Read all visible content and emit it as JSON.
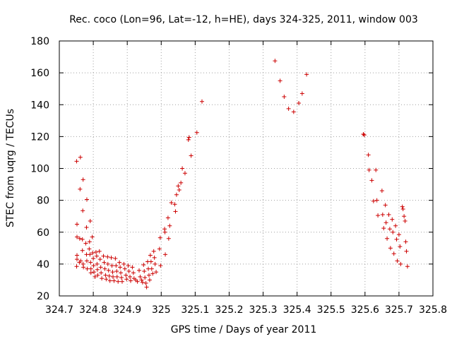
{
  "chart_data": {
    "type": "scatter",
    "title": "Rec. coco (Lon=96, Lat=-12, h=HE), days 324-325, 2011, window 003",
    "xlabel": "GPS time / Days of year 2011",
    "ylabel": "STEC from uqrg / TECUs",
    "xlim": [
      324.7,
      325.8
    ],
    "ylim": [
      20,
      180
    ],
    "xticks": [
      324.7,
      324.8,
      324.9,
      325,
      325.1,
      325.2,
      325.3,
      325.4,
      325.5,
      325.6,
      325.7,
      325.8
    ],
    "xtick_labels": [
      "324.7",
      "324.8",
      "324.9",
      "325",
      "325.1",
      "325.2",
      "325.3",
      "325.4",
      "325.5",
      "325.6",
      "325.7",
      "325.8"
    ],
    "yticks": [
      20,
      40,
      60,
      80,
      100,
      120,
      140,
      160,
      180
    ],
    "ytick_labels": [
      "20",
      "40",
      "60",
      "80",
      "100",
      "120",
      "140",
      "160",
      "180"
    ],
    "grid": true,
    "marker": "+",
    "color": "#cc0000",
    "series": [
      {
        "points": [
          [
            324.751,
            104.5
          ],
          [
            324.762,
            107.0
          ],
          [
            324.761,
            87.0
          ],
          [
            324.77,
            93.0
          ],
          [
            324.769,
            73.5
          ],
          [
            324.781,
            80.5
          ],
          [
            324.791,
            67.0
          ],
          [
            324.78,
            63.0
          ],
          [
            324.752,
            65.0
          ],
          [
            324.752,
            57.0
          ],
          [
            324.76,
            56.0
          ],
          [
            324.768,
            55.5
          ],
          [
            324.778,
            53.0
          ],
          [
            324.789,
            54.0
          ],
          [
            324.797,
            57.0
          ],
          [
            324.752,
            45.5
          ],
          [
            324.752,
            43.0
          ],
          [
            324.751,
            38.5
          ],
          [
            324.759,
            41.0
          ],
          [
            324.763,
            42.0
          ],
          [
            324.768,
            48.5
          ],
          [
            324.77,
            40.0
          ],
          [
            324.771,
            38.0
          ],
          [
            324.78,
            46.0
          ],
          [
            324.781,
            42.0
          ],
          [
            324.782,
            37.0
          ],
          [
            324.788,
            49.5
          ],
          [
            324.79,
            46.0
          ],
          [
            324.792,
            41.0
          ],
          [
            324.793,
            37.0
          ],
          [
            324.793,
            34.5
          ],
          [
            324.798,
            47.0
          ],
          [
            324.8,
            43.5
          ],
          [
            324.801,
            39.0
          ],
          [
            324.802,
            35.0
          ],
          [
            324.805,
            32.0
          ],
          [
            324.808,
            47.5
          ],
          [
            324.81,
            45.0
          ],
          [
            324.811,
            40.0
          ],
          [
            324.812,
            36.5
          ],
          [
            324.813,
            33.0
          ],
          [
            324.818,
            48.0
          ],
          [
            324.82,
            43.0
          ],
          [
            324.822,
            38.0
          ],
          [
            324.823,
            34.5
          ],
          [
            324.825,
            31.0
          ],
          [
            324.83,
            45.0
          ],
          [
            324.832,
            41.0
          ],
          [
            324.834,
            37.0
          ],
          [
            324.836,
            33.0
          ],
          [
            324.838,
            30.5
          ],
          [
            324.842,
            44.5
          ],
          [
            324.843,
            40.0
          ],
          [
            324.845,
            36.0
          ],
          [
            324.847,
            32.5
          ],
          [
            324.849,
            29.5
          ],
          [
            324.853,
            44.0
          ],
          [
            324.855,
            39.0
          ],
          [
            324.857,
            35.0
          ],
          [
            324.858,
            32.0
          ],
          [
            324.861,
            29.5
          ],
          [
            324.865,
            43.5
          ],
          [
            324.867,
            39.0
          ],
          [
            324.869,
            35.5
          ],
          [
            324.87,
            32.0
          ],
          [
            324.873,
            29.0
          ],
          [
            324.877,
            41.0
          ],
          [
            324.879,
            38.0
          ],
          [
            324.881,
            34.5
          ],
          [
            324.883,
            31.5
          ],
          [
            324.885,
            29.0
          ],
          [
            324.89,
            40.0
          ],
          [
            324.893,
            37.0
          ],
          [
            324.896,
            33.0
          ],
          [
            324.898,
            30.5
          ],
          [
            324.903,
            39.0
          ],
          [
            324.905,
            35.5
          ],
          [
            324.908,
            32.0
          ],
          [
            324.91,
            29.5
          ],
          [
            324.915,
            38.0
          ],
          [
            324.918,
            34.5
          ],
          [
            324.92,
            31.0
          ],
          [
            324.925,
            30.0
          ],
          [
            324.93,
            29.0
          ],
          [
            324.935,
            36.0
          ],
          [
            324.938,
            32.0
          ],
          [
            324.942,
            30.0
          ],
          [
            324.945,
            28.5
          ],
          [
            324.948,
            39.5
          ],
          [
            324.95,
            35.5
          ],
          [
            324.952,
            31.5
          ],
          [
            324.955,
            28.0
          ],
          [
            324.957,
            25.5
          ],
          [
            324.96,
            41.5
          ],
          [
            324.962,
            37.0
          ],
          [
            324.964,
            33.0
          ],
          [
            324.966,
            30.0
          ],
          [
            324.968,
            45.5
          ],
          [
            324.97,
            41.5
          ],
          [
            324.972,
            37.0
          ],
          [
            324.975,
            34.0
          ],
          [
            324.978,
            48.0
          ],
          [
            324.98,
            44.0
          ],
          [
            324.982,
            40.0
          ],
          [
            324.985,
            35.0
          ],
          [
            324.995,
            49.5
          ],
          [
            324.997,
            56.5
          ],
          [
            324.998,
            39.0
          ],
          [
            325.01,
            62.0
          ],
          [
            325.011,
            60.0
          ],
          [
            325.012,
            46.0
          ],
          [
            325.02,
            69.0
          ],
          [
            325.022,
            56.0
          ],
          [
            325.025,
            64.0
          ],
          [
            325.03,
            78.5
          ],
          [
            325.04,
            77.5
          ],
          [
            325.042,
            73.0
          ],
          [
            325.045,
            83.5
          ],
          [
            325.05,
            89.0
          ],
          [
            325.053,
            86.5
          ],
          [
            325.058,
            91.0
          ],
          [
            325.062,
            100.0
          ],
          [
            325.07,
            97.0
          ],
          [
            325.08,
            118.0
          ],
          [
            325.082,
            119.5
          ],
          [
            325.088,
            108.0
          ],
          [
            325.105,
            122.5
          ],
          [
            325.12,
            142.0
          ]
        ]
      },
      {
        "points": [
          [
            325.335,
            167.5
          ],
          [
            325.35,
            155.0
          ],
          [
            325.362,
            145.0
          ],
          [
            325.375,
            137.5
          ],
          [
            325.39,
            135.5
          ],
          [
            325.405,
            141.0
          ],
          [
            325.415,
            147.0
          ],
          [
            325.428,
            159.0
          ]
        ]
      },
      {
        "points": [
          [
            325.595,
            121.5
          ],
          [
            325.598,
            121.0
          ],
          [
            325.61,
            108.5
          ],
          [
            325.612,
            99.0
          ],
          [
            325.62,
            92.5
          ],
          [
            325.625,
            79.5
          ],
          [
            325.632,
            99.0
          ],
          [
            325.635,
            80.0
          ],
          [
            325.638,
            70.5
          ],
          [
            325.65,
            86.0
          ],
          [
            325.652,
            71.0
          ],
          [
            325.655,
            62.5
          ],
          [
            325.66,
            77.0
          ],
          [
            325.662,
            66.0
          ],
          [
            325.665,
            56.0
          ],
          [
            325.67,
            71.0
          ],
          [
            325.673,
            62.0
          ],
          [
            325.675,
            50.0
          ],
          [
            325.68,
            68.0
          ],
          [
            325.682,
            60.0
          ],
          [
            325.685,
            46.5
          ],
          [
            325.69,
            64.0
          ],
          [
            325.693,
            55.5
          ],
          [
            325.695,
            42.0
          ],
          [
            325.7,
            58.5
          ],
          [
            325.703,
            51.0
          ],
          [
            325.705,
            40.0
          ],
          [
            325.71,
            76.0
          ],
          [
            325.712,
            74.5
          ],
          [
            325.715,
            70.0
          ],
          [
            325.718,
            67.0
          ],
          [
            325.72,
            54.0
          ],
          [
            325.722,
            48.0
          ],
          [
            325.725,
            38.5
          ]
        ]
      }
    ]
  }
}
